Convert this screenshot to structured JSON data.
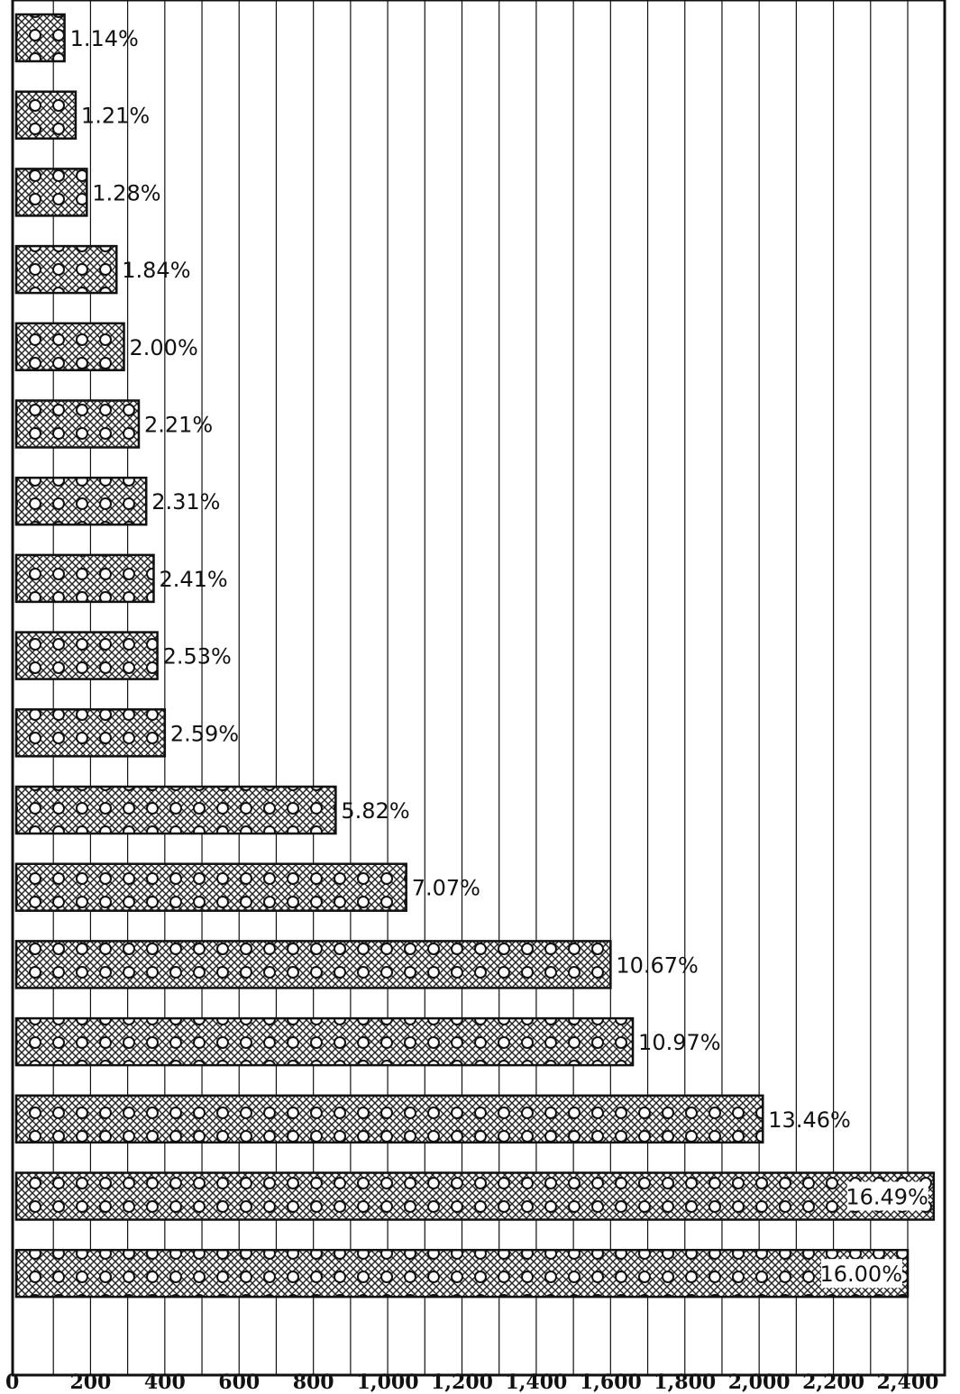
{
  "chart_data": {
    "type": "bar",
    "orientation": "horizontal",
    "title": "",
    "xlabel": "",
    "ylabel": "",
    "xlim": [
      0,
      2400
    ],
    "x_ticks": [
      "0",
      "200",
      "400",
      "600",
      "800",
      "1,000",
      "1,200",
      "1,400",
      "1,600",
      "1,800",
      "2,000",
      "2,200",
      "2,400"
    ],
    "grid": "vertical lines every 100 units",
    "legend": "none",
    "values": [
      130,
      160,
      190,
      270,
      290,
      330,
      350,
      370,
      380,
      400,
      860,
      1050,
      1600,
      1660,
      2010,
      2470,
      2400
    ],
    "data_labels": [
      "1.14%",
      "1.21%",
      "1.28%",
      "1.84%",
      "2.00%",
      "2.21%",
      "2.31%",
      "2.41%",
      "2.53%",
      "2.59%",
      "5.82%",
      "7.07%",
      "10.67%",
      "10.97%",
      "13.46%",
      "16.49%",
      "16.00%"
    ],
    "bar_pattern": "cross-hatched fill with white circles",
    "colors": {
      "ink": "#111111",
      "background": "#ffffff"
    }
  }
}
